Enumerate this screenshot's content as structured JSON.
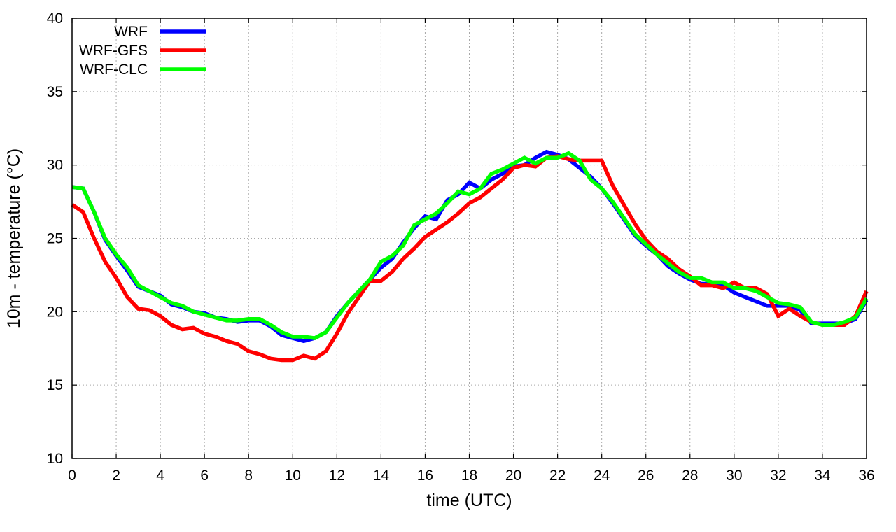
{
  "chart_data": {
    "type": "line",
    "title": "",
    "xlabel": "time (UTC)",
    "ylabel": "10m - temperature (°C)",
    "xlim": [
      0,
      36
    ],
    "ylim": [
      10,
      40
    ],
    "xticks": [
      0,
      2,
      4,
      6,
      8,
      10,
      12,
      14,
      16,
      18,
      20,
      22,
      24,
      26,
      28,
      30,
      32,
      34,
      36
    ],
    "yticks": [
      10,
      15,
      20,
      25,
      30,
      35,
      40
    ],
    "grid": true,
    "legend_position": "top-left",
    "x": [
      0,
      0.5,
      1,
      1.5,
      2,
      2.5,
      3,
      3.5,
      4,
      4.5,
      5,
      5.5,
      6,
      6.5,
      7,
      7.5,
      8,
      8.5,
      9,
      9.5,
      10,
      10.5,
      11,
      11.5,
      12,
      12.5,
      13,
      13.5,
      14,
      14.5,
      15,
      15.5,
      16,
      16.5,
      17,
      17.5,
      18,
      18.5,
      19,
      19.5,
      20,
      20.5,
      21,
      21.5,
      22,
      22.5,
      23,
      23.5,
      24,
      24.5,
      25,
      25.5,
      26,
      26.5,
      27,
      27.5,
      28,
      28.5,
      29,
      29.5,
      30,
      30.5,
      31,
      31.5,
      32,
      32.5,
      33,
      33.5,
      34,
      34.5,
      35,
      35.5,
      36
    ],
    "series": [
      {
        "name": "WRF",
        "color": "#0000ff",
        "values": [
          28.5,
          28.4,
          26.8,
          24.9,
          23.8,
          22.8,
          21.7,
          21.4,
          21.1,
          20.5,
          20.3,
          20.0,
          19.9,
          19.6,
          19.5,
          19.3,
          19.4,
          19.4,
          19.0,
          18.4,
          18.2,
          18.0,
          18.2,
          18.6,
          19.7,
          20.6,
          21.4,
          22.2,
          23.0,
          23.6,
          24.7,
          25.7,
          26.5,
          26.3,
          27.6,
          28.0,
          28.8,
          28.4,
          29.0,
          29.4,
          29.9,
          30.0,
          30.5,
          30.9,
          30.7,
          30.4,
          29.8,
          29.2,
          28.4,
          27.4,
          26.3,
          25.2,
          24.5,
          23.9,
          23.1,
          22.6,
          22.2,
          21.9,
          21.9,
          21.8,
          21.3,
          21.0,
          20.7,
          20.4,
          20.4,
          20.4,
          20.1,
          19.2,
          19.2,
          19.2,
          19.2,
          19.5,
          20.8
        ]
      },
      {
        "name": "WRF-GFS",
        "color": "#ff0000",
        "values": [
          27.3,
          26.8,
          25.0,
          23.4,
          22.3,
          21.0,
          20.2,
          20.1,
          19.7,
          19.1,
          18.8,
          18.9,
          18.5,
          18.3,
          18.0,
          17.8,
          17.3,
          17.1,
          16.8,
          16.7,
          16.7,
          17.0,
          16.8,
          17.3,
          18.5,
          19.9,
          21.0,
          22.1,
          22.1,
          22.7,
          23.6,
          24.3,
          25.1,
          25.6,
          26.1,
          26.7,
          27.4,
          27.8,
          28.4,
          29.0,
          29.8,
          30.0,
          29.9,
          30.5,
          30.6,
          30.4,
          30.3,
          30.3,
          30.3,
          28.6,
          27.3,
          26.0,
          24.9,
          24.1,
          23.6,
          22.9,
          22.4,
          21.8,
          21.8,
          21.6,
          22.0,
          21.6,
          21.6,
          21.2,
          19.7,
          20.2,
          19.7,
          19.3,
          19.1,
          19.1,
          19.1,
          19.7,
          21.4
        ]
      },
      {
        "name": "WRF-CLC",
        "color": "#00ff00",
        "values": [
          28.5,
          28.4,
          26.8,
          25.0,
          23.9,
          23.0,
          21.8,
          21.4,
          21.0,
          20.6,
          20.4,
          20.0,
          19.8,
          19.6,
          19.4,
          19.4,
          19.5,
          19.5,
          19.1,
          18.6,
          18.3,
          18.3,
          18.2,
          18.6,
          19.6,
          20.6,
          21.4,
          22.2,
          23.4,
          23.8,
          24.5,
          25.9,
          26.3,
          26.7,
          27.4,
          28.2,
          28.0,
          28.4,
          29.4,
          29.7,
          30.1,
          30.5,
          30.1,
          30.5,
          30.5,
          30.8,
          30.3,
          29.0,
          28.4,
          27.5,
          26.4,
          25.3,
          24.6,
          23.9,
          23.3,
          22.7,
          22.3,
          22.3,
          22.0,
          22.0,
          21.6,
          21.6,
          21.4,
          21.0,
          20.6,
          20.5,
          20.3,
          19.3,
          19.1,
          19.1,
          19.3,
          19.6,
          20.9
        ]
      }
    ]
  }
}
